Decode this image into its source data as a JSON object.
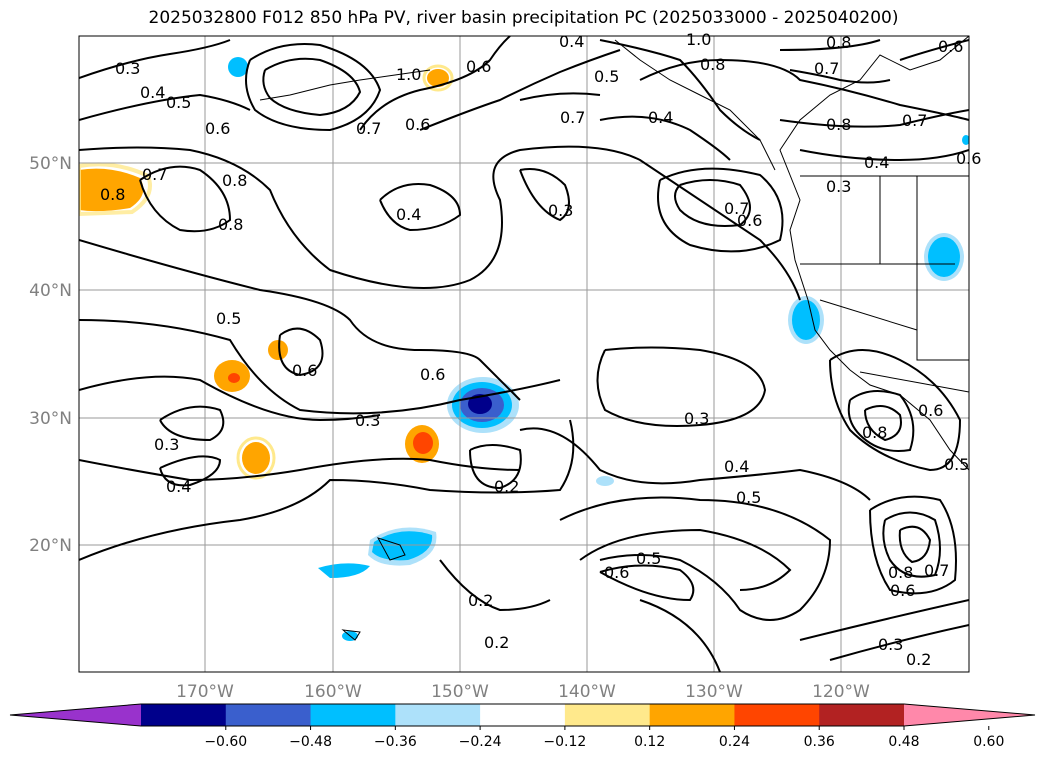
{
  "title": "2025032800 F012 850 hPa PV, river basin precipitation PC (2025033000 - 2025040200)",
  "lat_labels": [
    "50°N",
    "40°N",
    "30°N",
    "20°N"
  ],
  "lon_labels": [
    "170°W",
    "160°W",
    "150°W",
    "140°W",
    "130°W",
    "120°W"
  ],
  "colorbar": {
    "ticks": [
      "−0.60",
      "−0.48",
      "−0.36",
      "−0.24",
      "−0.12",
      "0.12",
      "0.24",
      "0.36",
      "0.48",
      "0.60"
    ],
    "colors": [
      "#9932CC",
      "#00008B",
      "#3A5FCD",
      "#00BFFF",
      "#ADE1FA",
      "#FFFFFF",
      "#FFE98C",
      "#FFA500",
      "#FF4500",
      "#B22222",
      "#FF88AA"
    ]
  },
  "contour_labels": [
    "0.3",
    "0.4",
    "0.5",
    "0.6",
    "0.4",
    "1.0",
    "0.6",
    "0.8",
    "0.7",
    "0.6",
    "0.7",
    "0.5",
    "0.4",
    "0.8",
    "0.7",
    "0.6",
    "1.0",
    "0.8",
    "0.7",
    "0.8",
    "0.7",
    "0.4",
    "0.3",
    "0.8",
    "0.4",
    "0.3",
    "0.7",
    "0.6",
    "0.8",
    "0.5",
    "0.6",
    "0.6",
    "0.3",
    "0.3",
    "0.4",
    "0.2",
    "0.3",
    "0.4",
    "0.5",
    "0.8",
    "0.6",
    "0.5",
    "0.2",
    "0.2",
    "0.6",
    "0.7",
    "0.8",
    "0.6",
    "0.3",
    "0.2",
    "0.6",
    "0.5"
  ]
}
